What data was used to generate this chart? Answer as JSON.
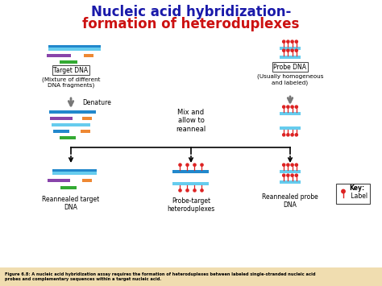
{
  "title_line1": "Nucleic acid hybridization-",
  "title_line2": "formation of heteroduplexes",
  "title_color1": "#1a1aaa",
  "title_color2": "#cc1111",
  "bg_color": "#ffffff",
  "caption": "Figure 6.8: A nucleic acid hybridization assay requires the formation of heteroduplexes between labeled single-stranded nucleic acid\nprobes and complementary sequences within a target nucleic acid.",
  "caption_bg": "#f0ddb0",
  "label_target_dna": "Target DNA",
  "label_probe_dna": "Probe DNA",
  "label_mixture": "(Mixture of different\nDNA fragments)",
  "label_homogeneous": "(Usually homogeneous\nand labeled)",
  "label_denature": "Denature",
  "label_mix": "Mix and\nallow to\nreanneal",
  "label_reannealed_target": "Reannealed target\nDNA",
  "label_probe_target": "Probe-target\nheteroduplexes",
  "label_reannealed_probe": "Reannealed probe\nDNA",
  "label_key": "Key:",
  "label_label": " Label",
  "colors": {
    "blue_dark": "#2288cc",
    "blue_light": "#66ccee",
    "purple": "#8844aa",
    "green": "#33aa33",
    "orange": "#ee8833",
    "red": "#dd2222",
    "gray_arrow": "#777777"
  }
}
